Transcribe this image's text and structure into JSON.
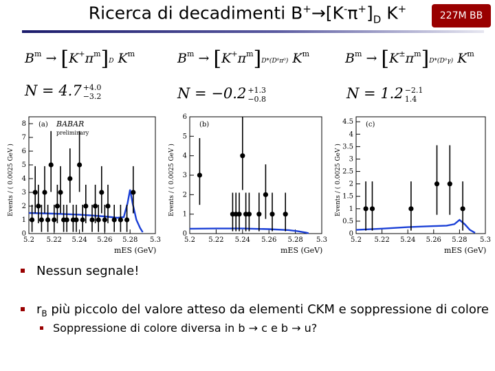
{
  "slide": {
    "title_main": "Ricerca di decadimenti B",
    "title_sup1": "+",
    "title_arrow": "→[K",
    "title_sup2": "-",
    "title_pi": "π",
    "title_sup3": "+",
    "title_close": "]",
    "title_subD": "D",
    "title_end": " K",
    "title_sup4": "+",
    "lumi_badge": "227M BB"
  },
  "formulas": [
    {
      "lead": "B",
      "mark1": "m",
      "mid": "→",
      "kpi": "K",
      "s1": "+",
      "pi": "π",
      "mark2": "m",
      "sub": "D",
      "tail": "K",
      "mark3": "m"
    },
    {
      "lead": "B",
      "mark1": "m",
      "mid": "→",
      "kpi": "K",
      "s1": "+",
      "pi": "π",
      "mark2": "m",
      "sub": "D*(D⁰π⁰)",
      "tail": "K",
      "mark3": "m"
    },
    {
      "lead": "B",
      "mark1": "m",
      "mid": "→",
      "kpi": "K",
      "s1": "±",
      "pi": "π",
      "mark2": "m",
      "sub": "D*(D⁰γ)",
      "tail": "K",
      "mark3": "m"
    }
  ],
  "yields": [
    {
      "label": "N = 4.7",
      "up": "+4.0",
      "down": "−3.2"
    },
    {
      "label": "N = −0.2",
      "up": "+1.3",
      "down": "−0.8"
    },
    {
      "label": "N = 1.2",
      "up": "−2.1",
      "down": "1.4"
    }
  ],
  "bullets": {
    "b1": "Nessun segnale!",
    "b2_pre": "r",
    "b2_sub": "B",
    "b2_post": " più piccolo del valore atteso da elementi CKM e soppressione di colore",
    "sub1": "Soppressione di colore diversa in b → c e b → u?"
  },
  "colors": {
    "accent": "#990000",
    "curve": "#1a3fd6",
    "title_rule": "#1b1b6b"
  },
  "chart_data": [
    {
      "type": "scatter",
      "panel": "(a)",
      "watermark": "BABAR",
      "watermark_sub": "preliminary",
      "xlabel": "mES (GeV)",
      "ylabel": "Events / ( 0.0025 GeV )",
      "xlim": [
        5.2,
        5.3
      ],
      "ylim": [
        0,
        8.5
      ],
      "xticks": [
        5.2,
        5.22,
        5.24,
        5.26,
        5.28,
        5.3
      ],
      "yticks": [
        0,
        1,
        2,
        3,
        4,
        5,
        6,
        7,
        8
      ],
      "points": [
        {
          "x": 5.2025,
          "y": 1
        },
        {
          "x": 5.205,
          "y": 3
        },
        {
          "x": 5.2075,
          "y": 2
        },
        {
          "x": 5.21,
          "y": 1
        },
        {
          "x": 5.2125,
          "y": 3
        },
        {
          "x": 5.215,
          "y": 1
        },
        {
          "x": 5.2175,
          "y": 5
        },
        {
          "x": 5.22,
          "y": 1
        },
        {
          "x": 5.2225,
          "y": 2
        },
        {
          "x": 5.225,
          "y": 3
        },
        {
          "x": 5.2275,
          "y": 1
        },
        {
          "x": 5.23,
          "y": 1
        },
        {
          "x": 5.2325,
          "y": 4
        },
        {
          "x": 5.235,
          "y": 1
        },
        {
          "x": 5.2375,
          "y": 1
        },
        {
          "x": 5.24,
          "y": 5
        },
        {
          "x": 5.2425,
          "y": 1
        },
        {
          "x": 5.245,
          "y": 2
        },
        {
          "x": 5.25,
          "y": 1
        },
        {
          "x": 5.2525,
          "y": 2
        },
        {
          "x": 5.255,
          "y": 1
        },
        {
          "x": 5.2575,
          "y": 3
        },
        {
          "x": 5.26,
          "y": 1
        },
        {
          "x": 5.2625,
          "y": 2
        },
        {
          "x": 5.2675,
          "y": 1
        },
        {
          "x": 5.2725,
          "y": 1
        },
        {
          "x": 5.2775,
          "y": 1
        },
        {
          "x": 5.2825,
          "y": 3
        }
      ],
      "fit_curve": [
        [
          5.2,
          1.5
        ],
        [
          5.22,
          1.45
        ],
        [
          5.24,
          1.38
        ],
        [
          5.26,
          1.25
        ],
        [
          5.27,
          1.15
        ],
        [
          5.275,
          1.2
        ],
        [
          5.278,
          2.2
        ],
        [
          5.28,
          3.2
        ],
        [
          5.282,
          2.2
        ],
        [
          5.285,
          1.0
        ],
        [
          5.288,
          0.4
        ],
        [
          5.29,
          0.1
        ]
      ]
    },
    {
      "type": "scatter",
      "panel": "(b)",
      "xlabel": "mES (GeV)",
      "ylabel": "Events / ( 0.0025 GeV )",
      "xlim": [
        5.2,
        5.3
      ],
      "ylim": [
        0,
        6
      ],
      "xticks": [
        5.2,
        5.22,
        5.24,
        5.26,
        5.28,
        5.3
      ],
      "yticks": [
        0,
        1,
        2,
        3,
        4,
        5,
        6
      ],
      "points": [
        {
          "x": 5.2075,
          "y": 3
        },
        {
          "x": 5.2325,
          "y": 1
        },
        {
          "x": 5.235,
          "y": 1
        },
        {
          "x": 5.2375,
          "y": 1
        },
        {
          "x": 5.24,
          "y": 4
        },
        {
          "x": 5.2425,
          "y": 1
        },
        {
          "x": 5.245,
          "y": 1
        },
        {
          "x": 5.2525,
          "y": 1
        },
        {
          "x": 5.2575,
          "y": 2
        },
        {
          "x": 5.2625,
          "y": 1
        },
        {
          "x": 5.2725,
          "y": 1
        }
      ],
      "fit_curve": [
        [
          5.2,
          0.25
        ],
        [
          5.22,
          0.26
        ],
        [
          5.24,
          0.26
        ],
        [
          5.26,
          0.23
        ],
        [
          5.275,
          0.18
        ],
        [
          5.282,
          0.12
        ],
        [
          5.288,
          0.05
        ],
        [
          5.29,
          0.02
        ]
      ]
    },
    {
      "type": "scatter",
      "panel": "(c)",
      "xlabel": "mES (GeV)",
      "ylabel": "Events / ( 0.0025 GeV )",
      "xlim": [
        5.2,
        5.3
      ],
      "ylim": [
        0,
        4.7
      ],
      "xticks": [
        5.2,
        5.22,
        5.24,
        5.26,
        5.28,
        5.3
      ],
      "yticks": [
        0,
        0.5,
        1,
        1.5,
        2,
        2.5,
        3,
        3.5,
        4,
        4.5
      ],
      "points": [
        {
          "x": 5.2075,
          "y": 1
        },
        {
          "x": 5.2125,
          "y": 1
        },
        {
          "x": 5.2425,
          "y": 1
        },
        {
          "x": 5.2625,
          "y": 2
        },
        {
          "x": 5.2725,
          "y": 2
        },
        {
          "x": 5.2825,
          "y": 1
        }
      ],
      "fit_curve": [
        [
          5.2,
          0.15
        ],
        [
          5.22,
          0.2
        ],
        [
          5.24,
          0.26
        ],
        [
          5.26,
          0.3
        ],
        [
          5.27,
          0.32
        ],
        [
          5.276,
          0.38
        ],
        [
          5.28,
          0.55
        ],
        [
          5.284,
          0.38
        ],
        [
          5.288,
          0.15
        ],
        [
          5.292,
          0.03
        ]
      ]
    }
  ]
}
